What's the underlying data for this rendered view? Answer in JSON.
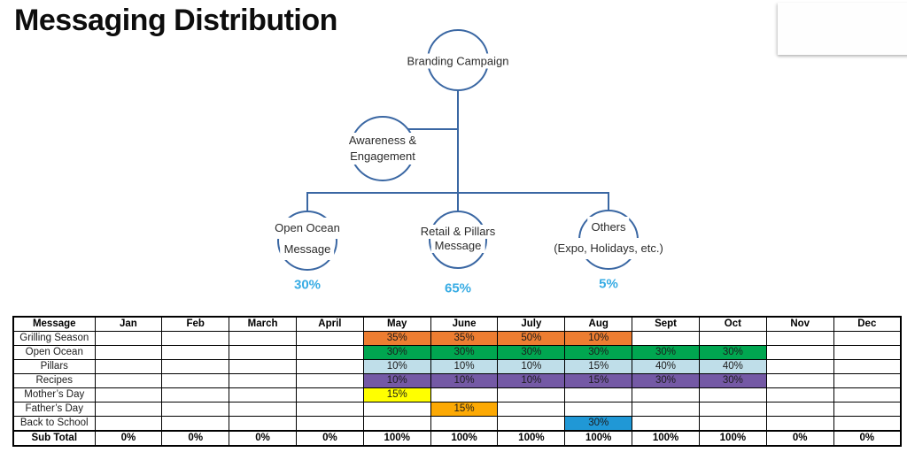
{
  "slide": {
    "title": "Messaging Distribution"
  },
  "diagram": {
    "line_color": "#3A67A3",
    "pct_color": "#38ACE4",
    "root": {
      "label": "Branding Campaign"
    },
    "mid": {
      "line1": "Awareness &",
      "line2": "Engagement"
    },
    "leaves": [
      {
        "line1": "Open Ocean",
        "line2": "Message",
        "pct": "30%"
      },
      {
        "line1": "Retail & Pillars",
        "line2": "Message",
        "pct": "65%"
      },
      {
        "line1": "Others",
        "line2": "(Expo, Holidays, etc.)",
        "pct": "5%"
      }
    ]
  },
  "table": {
    "headers": [
      "Message",
      "Jan",
      "Feb",
      "March",
      "April",
      "May",
      "June",
      "July",
      "Aug",
      "Sept",
      "Oct",
      "Nov",
      "Dec"
    ],
    "fill_colors": {
      "orange": "#ED7D31",
      "green": "#00A650",
      "lightblue": "#BFDEE9",
      "purple": "#7459A5",
      "yellow": "#FFFF00",
      "amber": "#FCA904",
      "blue": "#2098D6"
    },
    "rows": [
      {
        "label": "Grilling Season",
        "bold": false,
        "cells": [
          "",
          "",
          "",
          "",
          "35%",
          "35%",
          "50%",
          "10%",
          "",
          "",
          "",
          ""
        ],
        "fills": [
          "",
          "",
          "",
          "",
          "orange",
          "orange",
          "orange",
          "orange",
          "",
          "",
          "",
          ""
        ]
      },
      {
        "label": "Open Ocean",
        "bold": false,
        "cells": [
          "",
          "",
          "",
          "",
          "30%",
          "30%",
          "30%",
          "30%",
          "30%",
          "30%",
          "",
          ""
        ],
        "fills": [
          "",
          "",
          "",
          "",
          "green",
          "green",
          "green",
          "green",
          "green",
          "green",
          "",
          ""
        ]
      },
      {
        "label": "Pillars",
        "bold": false,
        "cells": [
          "",
          "",
          "",
          "",
          "10%",
          "10%",
          "10%",
          "15%",
          "40%",
          "40%",
          "",
          ""
        ],
        "fills": [
          "",
          "",
          "",
          "",
          "lightblue",
          "lightblue",
          "lightblue",
          "lightblue",
          "lightblue",
          "lightblue",
          "",
          ""
        ]
      },
      {
        "label": "Recipes",
        "bold": false,
        "cells": [
          "",
          "",
          "",
          "",
          "10%",
          "10%",
          "10%",
          "15%",
          "30%",
          "30%",
          "",
          ""
        ],
        "fills": [
          "",
          "",
          "",
          "",
          "purple",
          "purple",
          "purple",
          "purple",
          "purple",
          "purple",
          "",
          ""
        ]
      },
      {
        "label": "Mother’s Day",
        "bold": false,
        "cells": [
          "",
          "",
          "",
          "",
          "15%",
          "",
          "",
          "",
          "",
          "",
          "",
          ""
        ],
        "fills": [
          "",
          "",
          "",
          "",
          "yellow",
          "",
          "",
          "",
          "",
          "",
          "",
          ""
        ]
      },
      {
        "label": "Father’s Day",
        "bold": false,
        "cells": [
          "",
          "",
          "",
          "",
          "",
          "15%",
          "",
          "",
          "",
          "",
          "",
          ""
        ],
        "fills": [
          "",
          "",
          "",
          "",
          "",
          "amber",
          "",
          "",
          "",
          "",
          "",
          ""
        ]
      },
      {
        "label": "Back to School",
        "bold": false,
        "cells": [
          "",
          "",
          "",
          "",
          "",
          "",
          "",
          "30%",
          "",
          "",
          "",
          ""
        ],
        "fills": [
          "",
          "",
          "",
          "",
          "",
          "",
          "",
          "blue",
          "",
          "",
          "",
          ""
        ]
      },
      {
        "label": "Sub Total",
        "bold": true,
        "cells": [
          "0%",
          "0%",
          "0%",
          "0%",
          "100%",
          "100%",
          "100%",
          "100%",
          "100%",
          "100%",
          "0%",
          "0%"
        ],
        "fills": [
          "",
          "",
          "",
          "",
          "",
          "",
          "",
          "",
          "",
          "",
          "",
          ""
        ]
      }
    ]
  }
}
